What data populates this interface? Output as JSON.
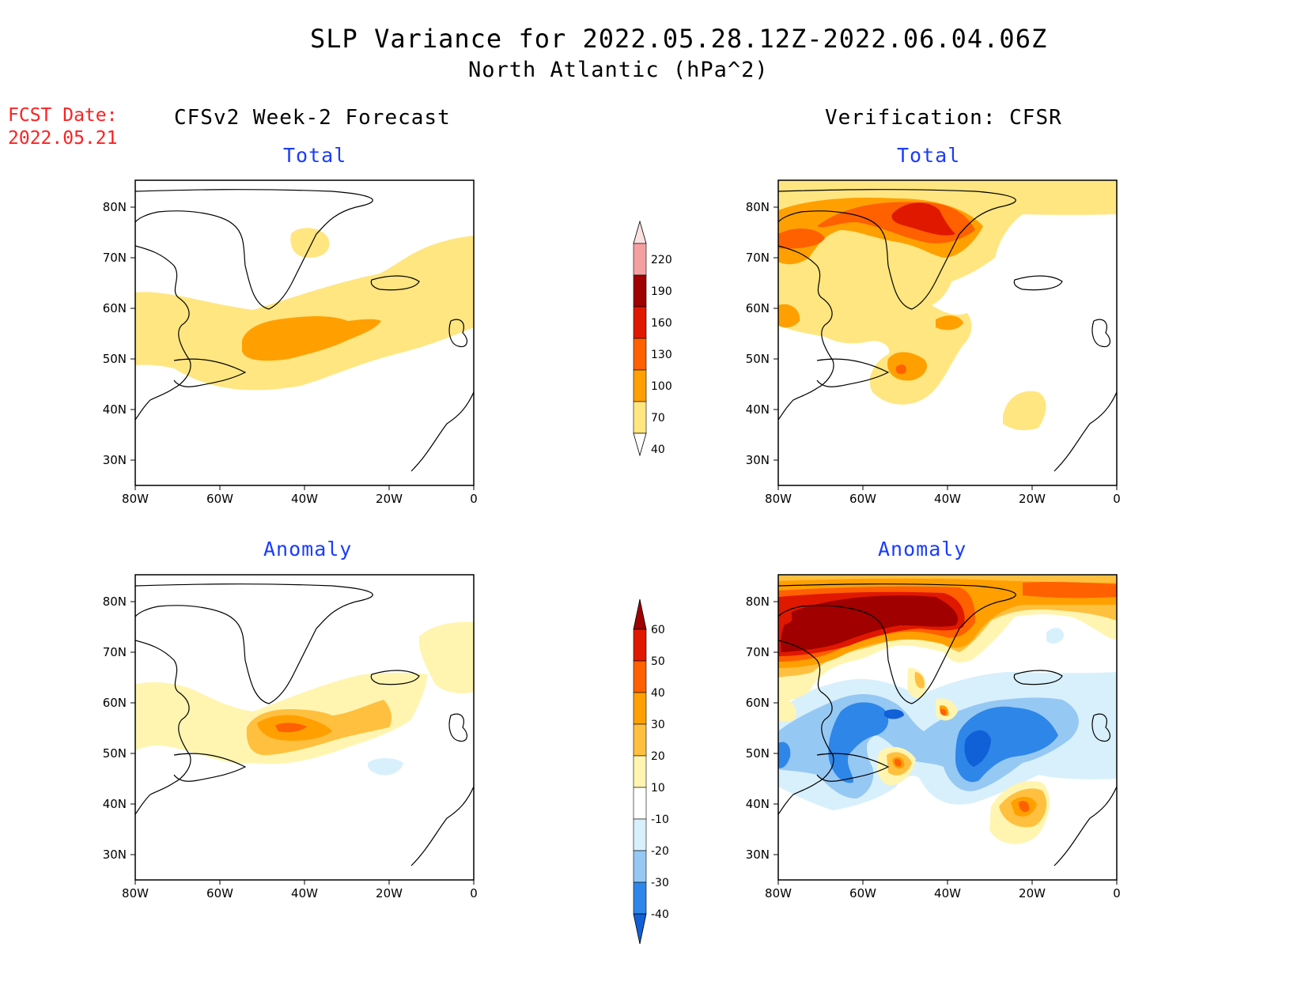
{
  "header": {
    "title": "SLP Variance for 2022.05.28.12Z-2022.06.04.06Z",
    "subtitle": "North Atlantic (hPa^2)",
    "fcst_label": "FCST Date:",
    "fcst_date": "2022.05.21"
  },
  "columns": {
    "left": "CFSv2 Week-2 Forecast",
    "right": "Verification: CFSR"
  },
  "panels": {
    "top_left": "Total",
    "top_right": "Total",
    "bottom_left": "Anomaly",
    "bottom_right": "Anomaly"
  },
  "axes": {
    "lon_labels": [
      "80W",
      "60W",
      "40W",
      "20W",
      "0"
    ],
    "lat_labels": [
      "80N",
      "70N",
      "60N",
      "50N",
      "40N",
      "30N"
    ]
  },
  "colorbars": {
    "total": {
      "levels": [
        "40",
        "70",
        "100",
        "130",
        "160",
        "190",
        "220"
      ],
      "colors": [
        "#ffffff",
        "#ffe680",
        "#ffa000",
        "#ff6000",
        "#e01800",
        "#a00000",
        "#f4a0a0",
        "#fde0e0"
      ]
    },
    "anomaly": {
      "levels": [
        "-40",
        "-30",
        "-20",
        "-10",
        "10",
        "20",
        "30",
        "40",
        "50",
        "60"
      ],
      "colors": [
        "#1060d8",
        "#2e86e8",
        "#96c8f4",
        "#d8f0fc",
        "#ffffff",
        "#fff5b0",
        "#ffc040",
        "#ffa000",
        "#ff6000",
        "#e01800",
        "#a00000"
      ]
    }
  },
  "palette": {
    "t40": "#ffe680",
    "t70": "#ffa000",
    "t100": "#ff6000",
    "t130": "#e01800",
    "a10": "#fff5b0",
    "a20": "#ffc040",
    "a30": "#ffa000",
    "a40": "#ff6000",
    "a50": "#e01800",
    "a60": "#a00000",
    "n10": "#d8f0fc",
    "n20": "#96c8f4",
    "n30": "#2e86e8",
    "n40": "#1060d8"
  }
}
